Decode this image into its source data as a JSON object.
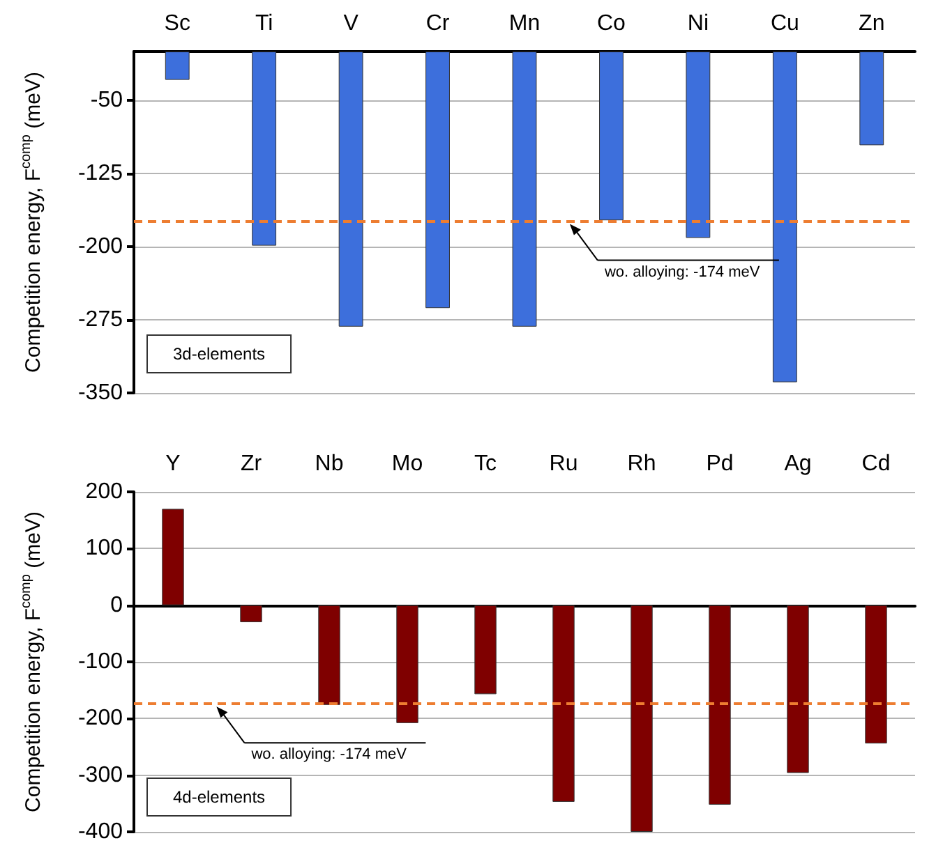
{
  "chart_data": [
    {
      "type": "bar",
      "categories": [
        "Sc",
        "Ti",
        "V",
        "Cr",
        "Mn",
        "Co",
        "Ni",
        "Cu",
        "Zn"
      ],
      "values": [
        -29,
        -199,
        -282,
        -263,
        -282,
        -173,
        -191,
        -339,
        -96
      ],
      "color": "#3d6fdc",
      "ylabel": "Competition energy, F$^{comp}$ (meV)",
      "ylim": [
        -350,
        0
      ],
      "yticks": [
        -350,
        -275,
        -200,
        -125,
        -50
      ],
      "grid": "y",
      "ref_lines": [
        {
          "axis": "y",
          "value": -174,
          "label": "wo. alloying: -174 meV",
          "color": "#ed7d31",
          "line_style": "dashed"
        }
      ],
      "annotations": [
        "3d-elements"
      ]
    },
    {
      "type": "bar",
      "categories": [
        "Y",
        "Zr",
        "Nb",
        "Mo",
        "Tc",
        "Ru",
        "Rh",
        "Pd",
        "Ag",
        "Cd"
      ],
      "values": [
        170,
        -30,
        -176,
        -208,
        -157,
        -347,
        -400,
        -352,
        -296,
        -244
      ],
      "color": "#7f0000",
      "ylabel": "Competition energy, F$^{comp}$ (meV)",
      "ylim": [
        -400,
        200
      ],
      "yticks": [
        -400,
        -300,
        -200,
        -100,
        0,
        100,
        200
      ],
      "grid": "y",
      "ref_lines": [
        {
          "axis": "y",
          "value": -174,
          "label": "wo. alloying: -174 meV",
          "color": "#ed7d31",
          "line_style": "dashed"
        }
      ],
      "annotations": [
        "4d-elements"
      ]
    }
  ]
}
